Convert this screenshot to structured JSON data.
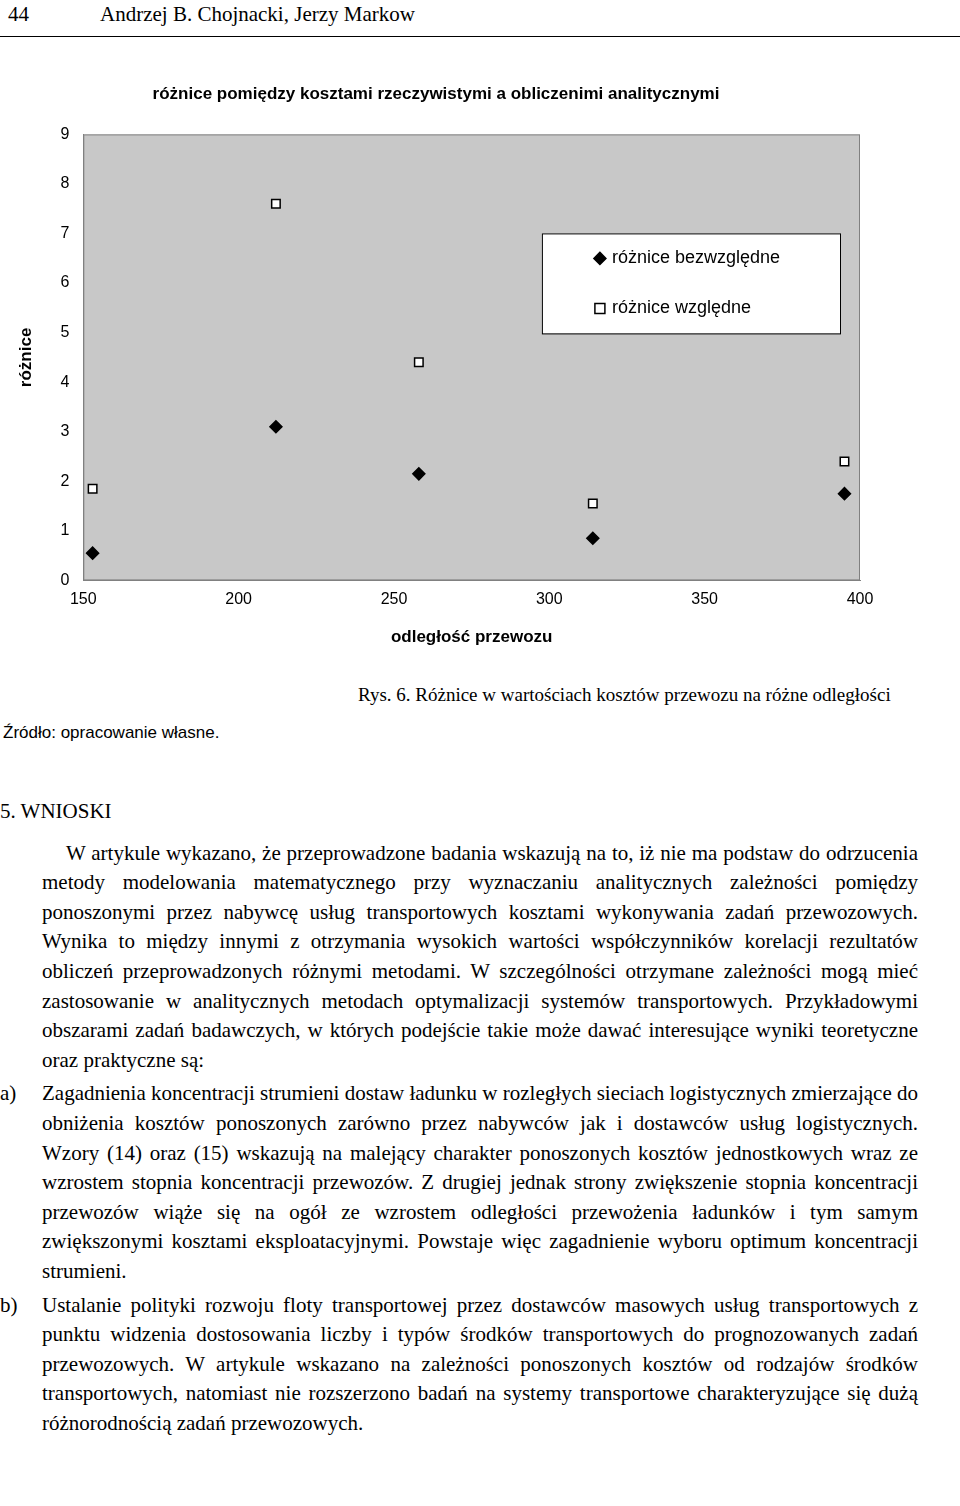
{
  "header": {
    "page_number": "44",
    "authors": "Andrzej B. Chojnacki, Jerzy Markow"
  },
  "chart_data": {
    "type": "scatter",
    "title": "różnice pomiędzy kosztami rzeczywistymi a obliczenimi analitycznymi",
    "x_label": "odległość przewozu",
    "y_label": "różnice",
    "x": [
      153,
      212,
      258,
      314,
      395
    ],
    "series": [
      {
        "name": "różnice bezwzględne",
        "color": "#000000",
        "marker": "diamond",
        "values": [
          0.55,
          3.1,
          2.15,
          0.85,
          1.75
        ]
      },
      {
        "name": "różnice względne",
        "color": "#000000",
        "marker": "open_square",
        "values": [
          1.85,
          7.6,
          4.4,
          1.55,
          2.4
        ]
      }
    ],
    "xlim": [
      150,
      400
    ],
    "xticks": [
      150,
      200,
      250,
      300,
      350,
      400
    ],
    "ylim": [
      0,
      9
    ],
    "yticks": [
      0,
      1,
      2,
      3,
      4,
      5,
      6,
      7,
      8,
      9
    ],
    "grid": false,
    "legend": "upper right"
  },
  "caption": "Rys. 6. Różnice w wartościach kosztów przewozu na różne odległości",
  "source": "Źródło: opracowanie własne.",
  "section": {
    "title": "5. WNIOSKI",
    "paragraphs": [
      "W artykule wykazano, że przeprowadzone badania wskazują na to, iż nie ma podstaw do odrzucenia metody modelowania matematycznego przy wyznaczaniu analitycznych zależności pomiędzy ponoszonymi przez nabywcę usług transportowych kosztami wykonywania zadań przewozowych. Wynika to między innymi z otrzymania wysokich wartości współczynników korelacji rezultatów obliczeń przeprowadzonych różnymi metodami. W szczególności otrzymane zależności mogą mieć zastosowanie w analitycznych metodach optymalizacji systemów transportowych. Przykładowymi obszarami zadań badawczych, w których podejście takie może dawać interesujące wyniki teoretyczne oraz praktyczne są:"
    ],
    "list": [
      {
        "label": "a)",
        "text": "Zagadnienia koncentracji strumieni dostaw ładunku w rozległych sieciach logistycznych zmierzające do obniżenia kosztów ponoszonych zarówno przez nabywców jak i dostawców usług logistycznych. Wzory (14) oraz (15) wskazują na malejący charakter ponoszonych kosztów jednostkowych wraz ze wzrostem stopnia koncentracji przewozów. Z drugiej jednak strony zwiększenie stopnia koncentracji przewozów wiąże się na ogół ze wzrostem odległości przewożenia ładunków i tym samym zwiększonymi kosztami eksploatacyjnymi. Powstaje więc zagadnienie wyboru optimum koncentracji strumieni."
      },
      {
        "label": "b)",
        "text": "Ustalanie polityki rozwoju floty transportowej przez dostawców masowych usług transportowych z punktu widzenia dostosowania liczby i typów środków transportowych do prognozowanych zadań przewozowych. W artykule wskazano na zależności ponoszonych kosztów od rodzajów środków transportowych, natomiast nie rozszerzono badań na systemy transportowe charakteryzujące się dużą różnorodnością zadań przewozowych."
      }
    ]
  }
}
